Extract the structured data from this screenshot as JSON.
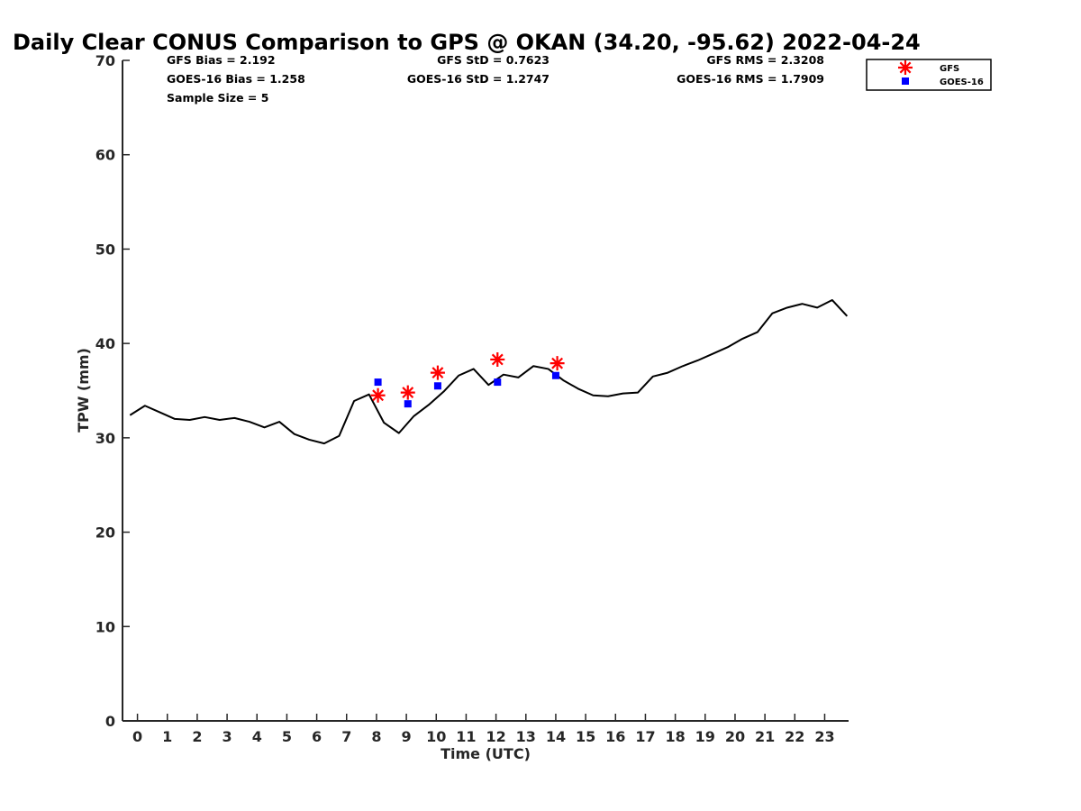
{
  "chart_data": {
    "type": "line",
    "title": "Daily Clear CONUS Comparison to GPS @ OKAN (34.20, -95.62) 2022-04-24",
    "xlabel": "Time (UTC)",
    "ylabel": "TPW (mm)",
    "xlim": [
      -0.5,
      23.8
    ],
    "ylim": [
      0,
      70
    ],
    "x_ticks": [
      0,
      1,
      2,
      3,
      4,
      5,
      6,
      7,
      8,
      9,
      10,
      11,
      12,
      13,
      14,
      15,
      16,
      17,
      18,
      19,
      20,
      21,
      22,
      23
    ],
    "y_ticks": [
      0,
      10,
      20,
      30,
      40,
      50,
      60,
      70
    ],
    "grid": false,
    "legend_position": "top-right",
    "series": [
      {
        "style": "line",
        "color": "#000000",
        "x": [
          -0.25,
          0.25,
          0.75,
          1.25,
          1.75,
          2.25,
          2.75,
          3.25,
          3.75,
          4.25,
          4.75,
          5.25,
          5.75,
          6.25,
          6.75,
          7.25,
          7.75,
          8.25,
          8.75,
          9.25,
          9.75,
          10.25,
          10.75,
          11.25,
          11.75,
          12.25,
          12.75,
          13.25,
          13.75,
          14.25,
          14.75,
          15.25,
          15.75,
          16.25,
          16.75,
          17.25,
          17.75,
          18.25,
          18.75,
          19.25,
          19.75,
          20.25,
          20.75,
          21.25,
          21.75,
          22.25,
          22.75,
          23.25,
          23.75
        ],
        "y": [
          32.4,
          33.4,
          32.7,
          32.0,
          31.9,
          32.2,
          31.9,
          32.1,
          31.7,
          31.1,
          31.7,
          30.4,
          29.8,
          29.4,
          30.2,
          33.9,
          34.6,
          31.6,
          30.5,
          32.3,
          33.5,
          34.9,
          36.6,
          37.3,
          35.6,
          36.7,
          36.4,
          37.6,
          37.3,
          36.1,
          35.2,
          34.5,
          34.4,
          34.7,
          34.8,
          36.5,
          36.9,
          37.6,
          38.2,
          38.9,
          39.6,
          40.5,
          41.2,
          43.2,
          43.8,
          44.2,
          43.8,
          44.6,
          42.9
        ]
      },
      {
        "name": "GFS",
        "style": "star",
        "color": "#ff0000",
        "x": [
          8.05,
          9.05,
          10.05,
          12.05,
          14.05
        ],
        "y": [
          34.5,
          34.8,
          36.9,
          38.3,
          37.9
        ]
      },
      {
        "name": "GOES-16",
        "style": "square",
        "color": "#0000ff",
        "x": [
          8.05,
          9.05,
          10.05,
          12.05,
          14.0
        ],
        "y": [
          35.9,
          33.6,
          35.5,
          35.9,
          36.6
        ]
      }
    ],
    "annotations": [
      "GFS Bias = 2.192",
      "GOES-16 Bias = 1.258",
      "Sample Size = 5",
      "GFS StD = 0.7623",
      "GOES-16 StD = 1.2747",
      "GFS RMS = 2.3208",
      "GOES-16 RMS = 1.7909"
    ]
  }
}
